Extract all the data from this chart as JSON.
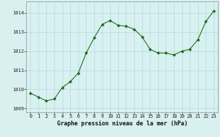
{
  "x": [
    0,
    1,
    2,
    3,
    4,
    5,
    6,
    7,
    8,
    9,
    10,
    11,
    12,
    13,
    14,
    15,
    16,
    17,
    18,
    19,
    20,
    21,
    22,
    23
  ],
  "y": [
    1009.8,
    1009.6,
    1009.4,
    1009.5,
    1010.1,
    1010.4,
    1010.85,
    1011.9,
    1012.7,
    1013.4,
    1013.6,
    1013.35,
    1013.3,
    1013.15,
    1012.75,
    1012.1,
    1011.9,
    1011.9,
    1011.8,
    1012.0,
    1012.1,
    1012.6,
    1013.55,
    1014.1
  ],
  "line_color": "#1a6b1a",
  "marker": "D",
  "marker_size": 2.0,
  "bg_color": "#d8f0f0",
  "grid_color": "#b8d8d8",
  "title": "Graphe pression niveau de la mer (hPa)",
  "xlim": [
    -0.5,
    23.5
  ],
  "ylim": [
    1008.8,
    1014.6
  ],
  "yticks": [
    1009,
    1010,
    1011,
    1012,
    1013,
    1014
  ],
  "xticks": [
    0,
    1,
    2,
    3,
    4,
    5,
    6,
    7,
    8,
    9,
    10,
    11,
    12,
    13,
    14,
    15,
    16,
    17,
    18,
    19,
    20,
    21,
    22,
    23
  ],
  "tick_fontsize": 5.0,
  "title_fontsize": 6.0,
  "title_fontweight": "bold"
}
